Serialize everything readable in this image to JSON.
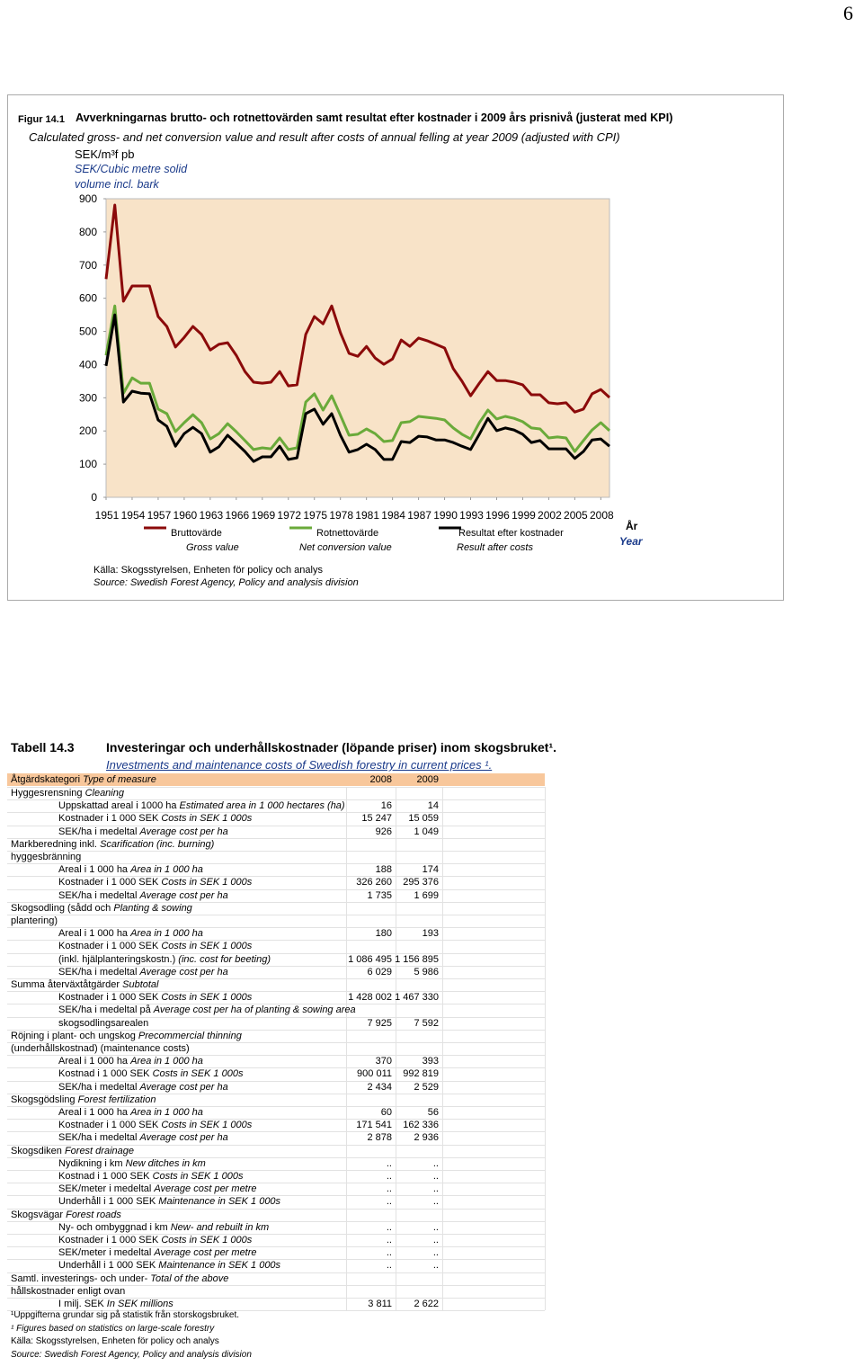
{
  "page_number": "6",
  "chart_data": {
    "type": "line",
    "figure_label": "Figur 14.1",
    "title": "Avverkningarnas brutto- och rotnettovärden samt resultat efter kostnader i 2009 års prisnivå (justerat med KPI)",
    "subtitle": "Calculated gross- and net conversion value and result after costs of annual felling at year 2009 (adjusted with CPI)",
    "y_label": "SEK/m³f pb",
    "y_label_en": "SEK/Cubic metre solid volume incl. bark",
    "x_label": "År",
    "x_label_en": "Year",
    "x": [
      1951,
      1952,
      1953,
      1954,
      1955,
      1956,
      1957,
      1958,
      1959,
      1960,
      1961,
      1962,
      1963,
      1964,
      1965,
      1966,
      1967,
      1968,
      1969,
      1970,
      1971,
      1972,
      1973,
      1974,
      1975,
      1976,
      1977,
      1978,
      1979,
      1980,
      1981,
      1982,
      1983,
      1984,
      1985,
      1986,
      1987,
      1988,
      1989,
      1990,
      1991,
      1992,
      1993,
      1994,
      1995,
      1996,
      1997,
      1998,
      1999,
      2000,
      2001,
      2002,
      2003,
      2004,
      2005,
      2006,
      2007,
      2008,
      2009
    ],
    "xlim": [
      1951,
      2009
    ],
    "xticks": [
      1951,
      1954,
      1957,
      1960,
      1963,
      1966,
      1969,
      1972,
      1975,
      1978,
      1981,
      1984,
      1987,
      1990,
      1993,
      1996,
      1999,
      2002,
      2005,
      2008
    ],
    "ylim": [
      0,
      900
    ],
    "yticks": [
      0,
      100,
      200,
      300,
      400,
      500,
      600,
      700,
      800,
      900
    ],
    "series": [
      {
        "name": "Bruttovärde",
        "name_en": "Gross value",
        "color": "#8b0a0a",
        "values": [
          658,
          881,
          591,
          637,
          637,
          637,
          545,
          515,
          453,
          482,
          515,
          491,
          444,
          461,
          466,
          428,
          379,
          347,
          344,
          347,
          379,
          336,
          339,
          491,
          545,
          523,
          577,
          496,
          434,
          425,
          455,
          420,
          401,
          417,
          474,
          455,
          480,
          472,
          461,
          450,
          388,
          350,
          306,
          344,
          379,
          352,
          352,
          347,
          339,
          309,
          309,
          285,
          282,
          285,
          257,
          266,
          312,
          325,
          301
        ]
      },
      {
        "name": "Rotnettovärde",
        "name_en": "Net conversion value",
        "color": "#6aaa3a",
        "values": [
          428,
          577,
          314,
          360,
          344,
          344,
          266,
          252,
          198,
          225,
          249,
          225,
          176,
          192,
          222,
          198,
          171,
          144,
          149,
          146,
          179,
          144,
          149,
          287,
          312,
          263,
          306,
          247,
          187,
          190,
          206,
          192,
          168,
          171,
          225,
          228,
          244,
          241,
          238,
          233,
          209,
          190,
          176,
          225,
          263,
          236,
          244,
          238,
          228,
          209,
          206,
          179,
          182,
          179,
          138,
          171,
          203,
          225,
          201
        ]
      },
      {
        "name": "Resultat efter kostnader",
        "name_en": "Result after costs",
        "color": "#000000",
        "values": [
          396,
          550,
          287,
          320,
          314,
          312,
          233,
          214,
          154,
          192,
          211,
          192,
          136,
          152,
          187,
          163,
          138,
          108,
          122,
          122,
          154,
          114,
          119,
          252,
          266,
          220,
          252,
          187,
          136,
          144,
          160,
          144,
          114,
          114,
          168,
          165,
          184,
          182,
          173,
          173,
          165,
          154,
          144,
          190,
          238,
          201,
          209,
          203,
          190,
          165,
          171,
          146,
          146,
          146,
          117,
          138,
          173,
          176,
          154
        ]
      }
    ],
    "source": [
      "Källa: Skogsstyrelsen, Enheten för policy och analys",
      "Source: Swedish Forest Agency, Policy and analysis division"
    ]
  },
  "table": {
    "label": "Tabell 14.3",
    "title": "Investeringar och underhållskostnader (löpande priser) inom skogsbruket¹.",
    "title_en": "Investments and maintenance costs of Swedish forestry in current prices ¹.",
    "header": {
      "label": "Åtgärdskategori",
      "label_en": "Type of measure"
    },
    "columns": [
      "2008",
      "2009"
    ],
    "rows": [
      {
        "category": "Hyggesrensning",
        "category_en": "Cleaning"
      },
      {
        "item": "Uppskattad areal i 1000 ha",
        "item_en": "Estimated area in 1 000 hectares (ha)",
        "values": [
          "16",
          "14"
        ]
      },
      {
        "item": "Kostnader i 1 000 SEK",
        "item_en": "Costs in SEK 1 000s",
        "values": [
          "15 247",
          "15 059"
        ]
      },
      {
        "item": "SEK/ha i medeltal",
        "item_en": "Average cost per ha",
        "values": [
          "926",
          "1 049"
        ]
      },
      {
        "category": "Markberedning inkl.",
        "category_en": "Scarification (inc. burning)"
      },
      {
        "category": "hyggesbränning"
      },
      {
        "item": "Areal i 1 000 ha",
        "item_en": "Area in 1 000 ha",
        "values": [
          "188",
          "174"
        ]
      },
      {
        "item": "Kostnader i 1 000 SEK",
        "item_en": "Costs in SEK 1 000s",
        "values": [
          "326 260",
          "295 376"
        ]
      },
      {
        "item": "SEK/ha i medeltal",
        "item_en": "Average cost per ha",
        "values": [
          "1 735",
          "1 699"
        ]
      },
      {
        "category": "Skogsodling (sådd och",
        "category_en": "Planting & sowing"
      },
      {
        "category": "plantering)"
      },
      {
        "item": "Areal i 1 000 ha",
        "item_en": "Area in 1 000 ha",
        "values": [
          "180",
          "193"
        ]
      },
      {
        "item": "Kostnader i 1 000 SEK",
        "item_en": "Costs in SEK 1 000s"
      },
      {
        "item": "(inkl. hjälplanteringskostn.)",
        "item_en": "(inc. cost for beeting)",
        "values": [
          "1 086 495",
          "1 156 895"
        ]
      },
      {
        "item": "SEK/ha i medeltal",
        "item_en": "Average cost per ha",
        "values": [
          "6 029",
          "5 986"
        ]
      },
      {
        "category": "Summa återväxtåtgärder",
        "category_en": "Subtotal"
      },
      {
        "item": "Kostnader i 1 000 SEK",
        "item_en": "Costs in SEK 1 000s",
        "values": [
          "1 428 002",
          "1 467 330"
        ]
      },
      {
        "item": "SEK/ha i medeltal på",
        "item_en": "Average cost per ha of planting & sowing area"
      },
      {
        "item": "skogsodlingsarealen",
        "values": [
          "7 925",
          "7 592"
        ]
      },
      {
        "category": "Röjning i plant- och ungskog",
        "category_en": "Precommercial thinning"
      },
      {
        "category": "(underhållskostnad) (maintenance costs)"
      },
      {
        "item": "Areal i 1 000 ha",
        "item_en": "Area in 1 000 ha",
        "values": [
          "370",
          "393"
        ]
      },
      {
        "item": "Kostnad i 1 000 SEK",
        "item_en": "Costs in SEK 1 000s",
        "values": [
          "900 011",
          "992 819"
        ]
      },
      {
        "item": "SEK/ha i medeltal",
        "item_en": "Average cost per ha",
        "values": [
          "2 434",
          "2 529"
        ]
      },
      {
        "category": "Skogsgödsling",
        "category_en": "Forest fertilization"
      },
      {
        "item": "Areal i 1 000 ha",
        "item_en": "Area in 1 000 ha",
        "values": [
          "60",
          "56"
        ]
      },
      {
        "item": "Kostnader i 1 000 SEK",
        "item_en": "Costs in SEK 1 000s",
        "values": [
          "171 541",
          "162 336"
        ]
      },
      {
        "item": "SEK/ha i medeltal",
        "item_en": "Average cost per ha",
        "values": [
          "2 878",
          "2 936"
        ]
      },
      {
        "category": "Skogsdiken",
        "category_en": "Forest drainage"
      },
      {
        "item": "Nydikning i km",
        "item_en": "New ditches in km",
        "values": [
          "..",
          ".."
        ]
      },
      {
        "item": "Kostnad i 1 000 SEK",
        "item_en": "Costs in SEK 1 000s",
        "values": [
          "..",
          ".."
        ]
      },
      {
        "item": "SEK/meter i medeltal",
        "item_en": "Average cost per metre",
        "values": [
          "..",
          ".."
        ]
      },
      {
        "item": "Underhåll i 1 000 SEK",
        "item_en": "Maintenance in SEK 1 000s",
        "values": [
          "..",
          ".."
        ]
      },
      {
        "category": "Skogsvägar",
        "category_en": "Forest roads"
      },
      {
        "item": "Ny- och ombyggnad i km",
        "item_en": "New- and rebuilt in km",
        "values": [
          "..",
          ".."
        ]
      },
      {
        "item": "Kostnader i 1 000 SEK",
        "item_en": "Costs in SEK 1 000s",
        "values": [
          "..",
          ".."
        ]
      },
      {
        "item": "SEK/meter i medeltal",
        "item_en": "Average cost per metre",
        "values": [
          "..",
          ".."
        ]
      },
      {
        "item": "Underhåll i 1 000 SEK",
        "item_en": "Maintenance in SEK 1 000s",
        "values": [
          "..",
          ".."
        ]
      },
      {
        "category": "Samtl. investerings- och under-",
        "category_en": "Total of the above"
      },
      {
        "category": "hållskostnader enligt ovan"
      },
      {
        "item": "I milj. SEK",
        "item_en": "In SEK millions",
        "values": [
          "3 811",
          "2 622"
        ]
      }
    ],
    "footnotes": [
      "¹Uppgifterna grundar sig på statistik från storskogsbruket.",
      "¹  Figures based on statistics on large-scale forestry",
      "Källa: Skogsstyrelsen, Enheten för policy och analys",
      "Source: Swedish Forest Agency, Policy and analysis division"
    ]
  }
}
